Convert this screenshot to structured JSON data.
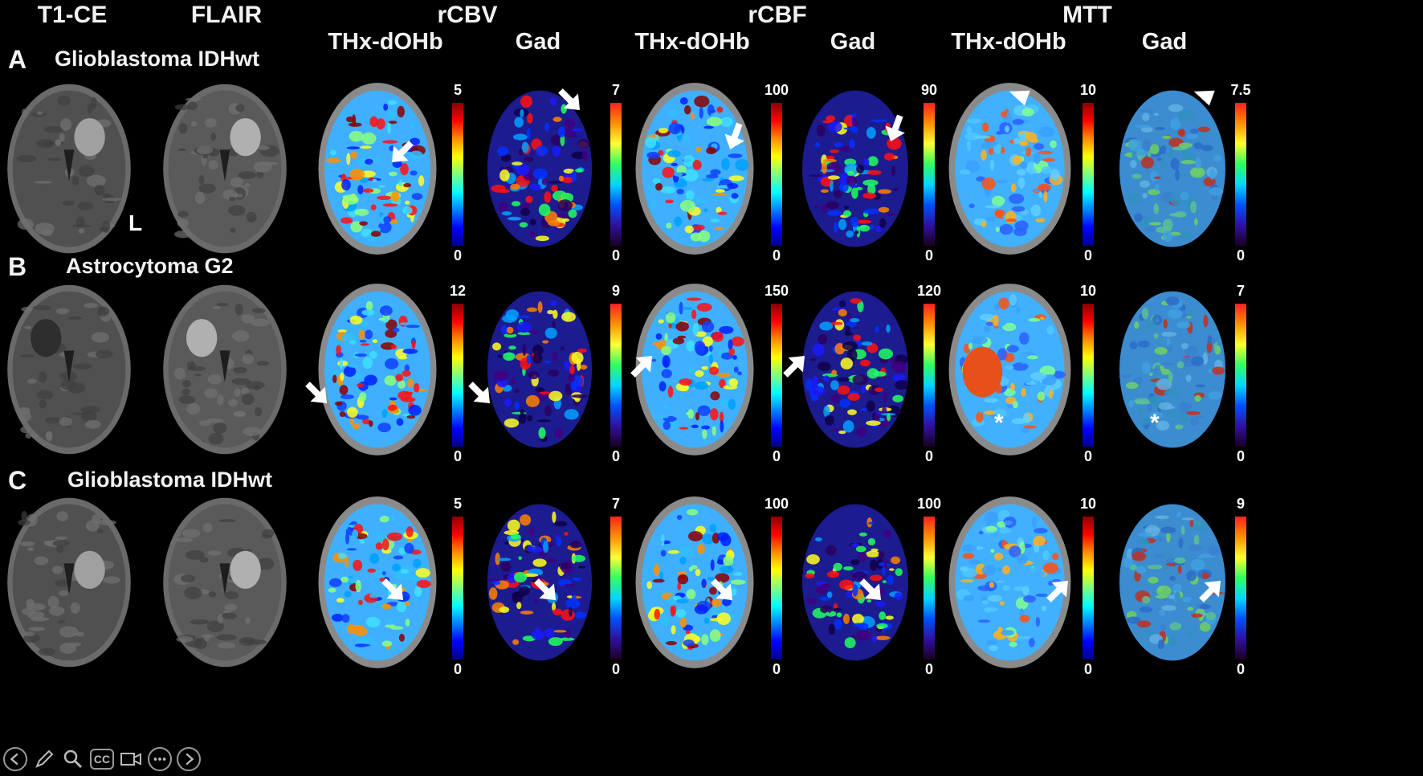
{
  "headers": {
    "t1ce": "T1-CE",
    "flair": "FLAIR",
    "rcbv": "rCBV",
    "rcbf": "rCBF",
    "mtt": "MTT"
  },
  "subheaders": {
    "rcbv_thx": "THx-dOHb",
    "rcbv_gad": "Gad",
    "rcbf_thx": "THx-dOHb",
    "rcbf_gad": "Gad",
    "mtt_thx": "THx-dOHb",
    "mtt_gad": "Gad"
  },
  "rows": [
    {
      "letter": "A",
      "title": "Glioblastoma IDHwt",
      "scales": {
        "rcbv_thx": [
          "5",
          "0"
        ],
        "rcbv_gad": [
          "7",
          "0"
        ],
        "rcbf_thx": [
          "100",
          "0"
        ],
        "rcbf_gad": [
          "90",
          "0"
        ],
        "mtt_thx": [
          "10",
          "0"
        ],
        "mtt_gad": [
          "7.5",
          "0"
        ]
      }
    },
    {
      "letter": "B",
      "title": "Astrocytoma G2",
      "scales": {
        "rcbv_thx": [
          "12",
          "0"
        ],
        "rcbv_gad": [
          "9",
          "0"
        ],
        "rcbf_thx": [
          "150",
          "0"
        ],
        "rcbf_gad": [
          "120",
          "0"
        ],
        "mtt_thx": [
          "10",
          "0"
        ],
        "mtt_gad": [
          "7",
          "0"
        ]
      }
    },
    {
      "letter": "C",
      "title": "Glioblastoma IDHwt",
      "scales": {
        "rcbv_thx": [
          "5",
          "0"
        ],
        "rcbv_gad": [
          "7",
          "0"
        ],
        "rcbf_thx": [
          "100",
          "0"
        ],
        "rcbf_gad": [
          "100",
          "0"
        ],
        "mtt_thx": [
          "10",
          "0"
        ],
        "mtt_gad": [
          "9",
          "0"
        ]
      }
    }
  ],
  "side_marker": "L",
  "annotations": {
    "asterisk": "*"
  },
  "toolbar": {
    "items": [
      "back-arrow-icon",
      "pen-icon",
      "zoom-icon",
      "captions-icon",
      "video-icon",
      "more-icon",
      "forward-arrow-icon"
    ],
    "cc_label": "CC"
  }
}
